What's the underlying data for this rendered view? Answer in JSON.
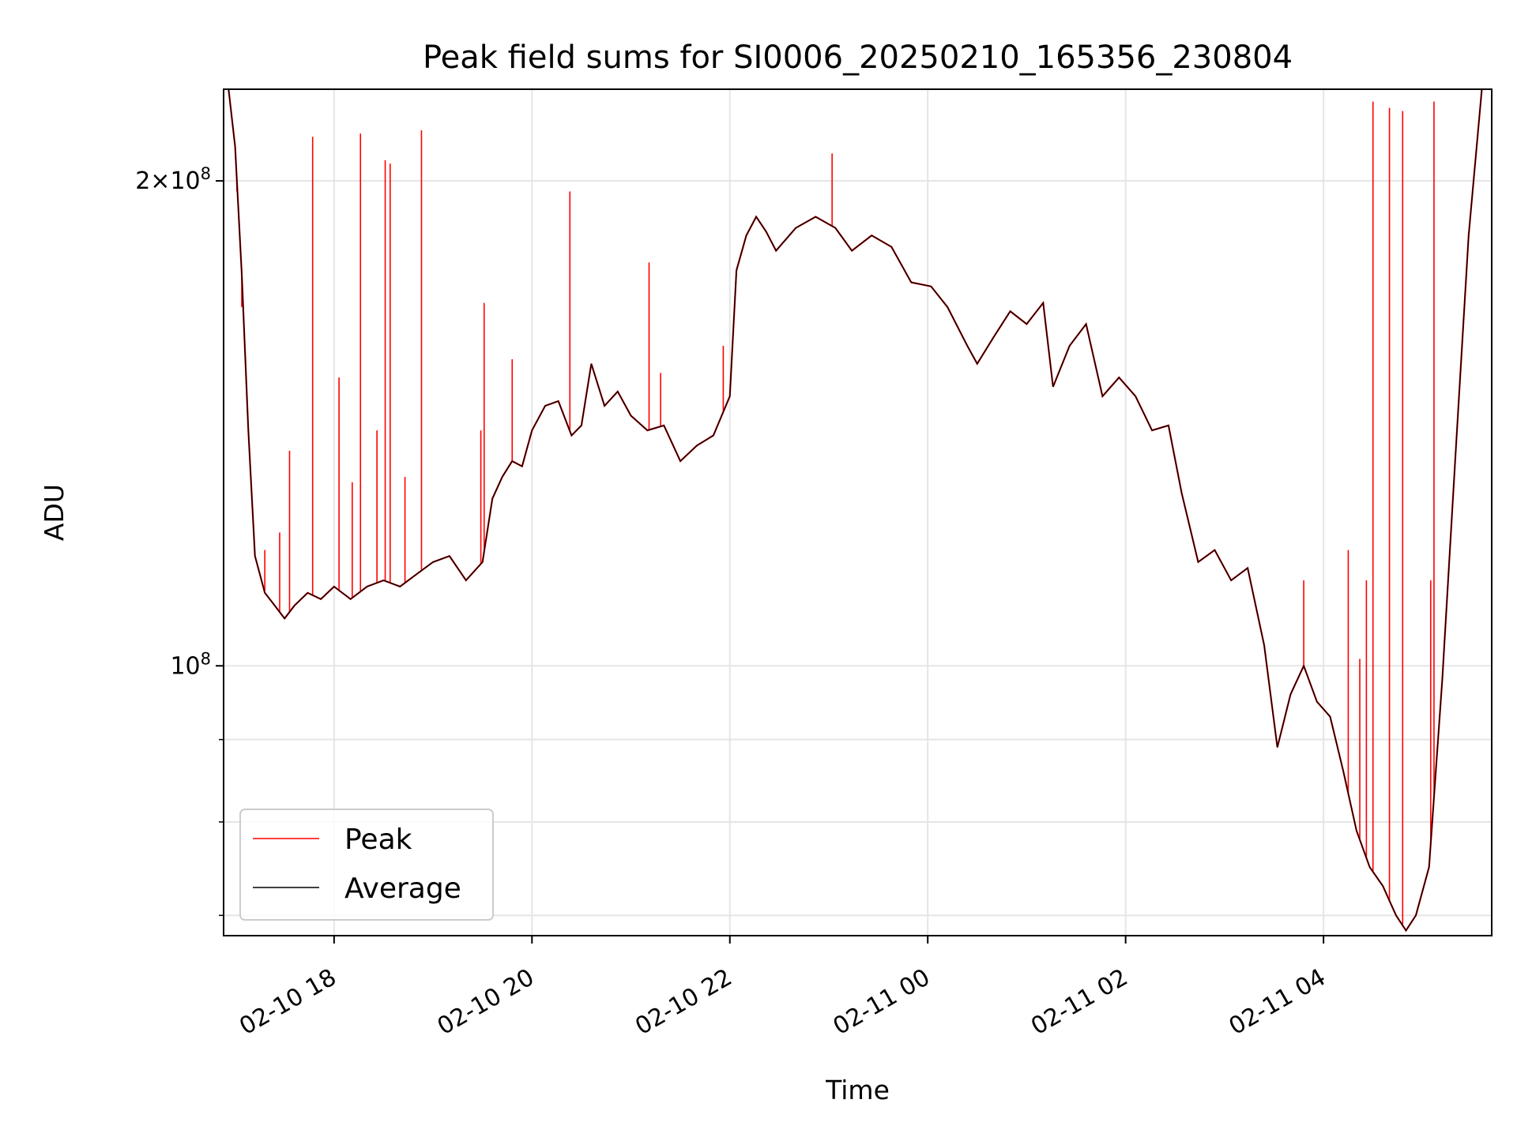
{
  "chart_data": {
    "type": "line",
    "title": "Peak field sums for SI0006_20250210_165356_230804",
    "xlabel": "Time",
    "ylabel": "ADU",
    "y_scale": "log",
    "ylim": [
      68000000,
      228000000
    ],
    "xlim": [
      "2025-02-10 16:53",
      "2025-02-11 05:42"
    ],
    "grid": true,
    "legend_position": "lower-left",
    "x_ticks": [
      "02-10 18",
      "02-10 20",
      "02-10 22",
      "02-11 00",
      "02-11 02",
      "02-11 04"
    ],
    "x_tick_times": [
      "2025-02-10 18:00",
      "2025-02-10 20:00",
      "2025-02-10 22:00",
      "2025-02-11 00:00",
      "2025-02-11 02:00",
      "2025-02-11 04:00"
    ],
    "y_ticks": [
      {
        "value": 100000000,
        "base": "10",
        "exp": "8",
        "mantissa": ""
      },
      {
        "value": 200000000,
        "base": "10",
        "exp": "8",
        "mantissa": "2×"
      }
    ],
    "colors": {
      "peak": "#ff0000",
      "average": "#000000",
      "grid": "#e5e5e5"
    },
    "series": [
      {
        "name": "Average",
        "color": "#000000",
        "points": [
          [
            "2025-02-10 16:56",
            228000000
          ],
          [
            "2025-02-10 17:00",
            210000000
          ],
          [
            "2025-02-10 17:04",
            175000000
          ],
          [
            "2025-02-10 17:08",
            140000000
          ],
          [
            "2025-02-10 17:12",
            117000000
          ],
          [
            "2025-02-10 17:18",
            111000000
          ],
          [
            "2025-02-10 17:24",
            109000000
          ],
          [
            "2025-02-10 17:30",
            107000000
          ],
          [
            "2025-02-10 17:36",
            109000000
          ],
          [
            "2025-02-10 17:44",
            111000000
          ],
          [
            "2025-02-10 17:52",
            110000000
          ],
          [
            "2025-02-10 18:00",
            112000000
          ],
          [
            "2025-02-10 18:10",
            110000000
          ],
          [
            "2025-02-10 18:20",
            112000000
          ],
          [
            "2025-02-10 18:30",
            113000000
          ],
          [
            "2025-02-10 18:40",
            112000000
          ],
          [
            "2025-02-10 18:50",
            114000000
          ],
          [
            "2025-02-10 19:00",
            116000000
          ],
          [
            "2025-02-10 19:10",
            117000000
          ],
          [
            "2025-02-10 19:20",
            113000000
          ],
          [
            "2025-02-10 19:30",
            116000000
          ],
          [
            "2025-02-10 19:36",
            127000000
          ],
          [
            "2025-02-10 19:42",
            131000000
          ],
          [
            "2025-02-10 19:48",
            134000000
          ],
          [
            "2025-02-10 19:54",
            133000000
          ],
          [
            "2025-02-10 20:00",
            140000000
          ],
          [
            "2025-02-10 20:08",
            145000000
          ],
          [
            "2025-02-10 20:16",
            146000000
          ],
          [
            "2025-02-10 20:24",
            139000000
          ],
          [
            "2025-02-10 20:30",
            141000000
          ],
          [
            "2025-02-10 20:36",
            154000000
          ],
          [
            "2025-02-10 20:44",
            145000000
          ],
          [
            "2025-02-10 20:52",
            148000000
          ],
          [
            "2025-02-10 21:00",
            143000000
          ],
          [
            "2025-02-10 21:10",
            140000000
          ],
          [
            "2025-02-10 21:20",
            141000000
          ],
          [
            "2025-02-10 21:30",
            134000000
          ],
          [
            "2025-02-10 21:40",
            137000000
          ],
          [
            "2025-02-10 21:50",
            139000000
          ],
          [
            "2025-02-10 22:00",
            147000000
          ],
          [
            "2025-02-10 22:04",
            176000000
          ],
          [
            "2025-02-10 22:10",
            185000000
          ],
          [
            "2025-02-10 22:16",
            190000000
          ],
          [
            "2025-02-10 22:22",
            186000000
          ],
          [
            "2025-02-10 22:28",
            181000000
          ],
          [
            "2025-02-10 22:40",
            187000000
          ],
          [
            "2025-02-10 22:52",
            190000000
          ],
          [
            "2025-02-10 23:04",
            187000000
          ],
          [
            "2025-02-10 23:14",
            181000000
          ],
          [
            "2025-02-10 23:26",
            185000000
          ],
          [
            "2025-02-10 23:38",
            182000000
          ],
          [
            "2025-02-10 23:50",
            173000000
          ],
          [
            "2025-02-11 00:02",
            172000000
          ],
          [
            "2025-02-11 00:12",
            167000000
          ],
          [
            "2025-02-11 00:24",
            158000000
          ],
          [
            "2025-02-11 00:30",
            154000000
          ],
          [
            "2025-02-11 00:40",
            160000000
          ],
          [
            "2025-02-11 00:50",
            166000000
          ],
          [
            "2025-02-11 01:00",
            163000000
          ],
          [
            "2025-02-11 01:10",
            168000000
          ],
          [
            "2025-02-11 01:16",
            149000000
          ],
          [
            "2025-02-11 01:26",
            158000000
          ],
          [
            "2025-02-11 01:36",
            163000000
          ],
          [
            "2025-02-11 01:46",
            147000000
          ],
          [
            "2025-02-11 01:56",
            151000000
          ],
          [
            "2025-02-11 02:06",
            147000000
          ],
          [
            "2025-02-11 02:16",
            140000000
          ],
          [
            "2025-02-11 02:26",
            141000000
          ],
          [
            "2025-02-11 02:34",
            128000000
          ],
          [
            "2025-02-11 02:44",
            116000000
          ],
          [
            "2025-02-11 02:54",
            118000000
          ],
          [
            "2025-02-11 03:04",
            113000000
          ],
          [
            "2025-02-11 03:14",
            115000000
          ],
          [
            "2025-02-11 03:24",
            103000000
          ],
          [
            "2025-02-11 03:32",
            89000000
          ],
          [
            "2025-02-11 03:40",
            96000000
          ],
          [
            "2025-02-11 03:48",
            100000000
          ],
          [
            "2025-02-11 03:56",
            95000000
          ],
          [
            "2025-02-11 04:04",
            93000000
          ],
          [
            "2025-02-11 04:12",
            86000000
          ],
          [
            "2025-02-11 04:20",
            79000000
          ],
          [
            "2025-02-11 04:28",
            75000000
          ],
          [
            "2025-02-11 04:36",
            73000000
          ],
          [
            "2025-02-11 04:44",
            70000000
          ],
          [
            "2025-02-11 04:50",
            68500000
          ],
          [
            "2025-02-11 04:56",
            70000000
          ],
          [
            "2025-02-11 05:04",
            75000000
          ],
          [
            "2025-02-11 05:12",
            98000000
          ],
          [
            "2025-02-11 05:20",
            135000000
          ],
          [
            "2025-02-11 05:28",
            185000000
          ],
          [
            "2025-02-11 05:36",
            228000000
          ]
        ]
      },
      {
        "name": "Peak",
        "color": "#ff0000",
        "spikes": [
          [
            "2025-02-10 17:01",
            197000000
          ],
          [
            "2025-02-10 17:04",
            167000000
          ],
          [
            "2025-02-10 17:18",
            118000000
          ],
          [
            "2025-02-10 17:27",
            121000000
          ],
          [
            "2025-02-10 17:33",
            136000000
          ],
          [
            "2025-02-10 17:47",
            213000000
          ],
          [
            "2025-02-10 18:03",
            151000000
          ],
          [
            "2025-02-10 18:11",
            130000000
          ],
          [
            "2025-02-10 18:16",
            214000000
          ],
          [
            "2025-02-10 18:26",
            140000000
          ],
          [
            "2025-02-10 18:31",
            206000000
          ],
          [
            "2025-02-10 18:34",
            205000000
          ],
          [
            "2025-02-10 18:43",
            131000000
          ],
          [
            "2025-02-10 18:53",
            215000000
          ],
          [
            "2025-02-10 19:29",
            140000000
          ],
          [
            "2025-02-10 19:31",
            168000000
          ],
          [
            "2025-02-10 19:48",
            155000000
          ],
          [
            "2025-02-10 20:23",
            197000000
          ],
          [
            "2025-02-10 21:11",
            178000000
          ],
          [
            "2025-02-10 21:18",
            152000000
          ],
          [
            "2025-02-10 21:56",
            158000000
          ],
          [
            "2025-02-10 23:02",
            208000000
          ],
          [
            "2025-02-11 03:48",
            113000000
          ],
          [
            "2025-02-11 04:15",
            118000000
          ],
          [
            "2025-02-11 04:22",
            101000000
          ],
          [
            "2025-02-11 04:26",
            113000000
          ],
          [
            "2025-02-11 04:30",
            224000000
          ],
          [
            "2025-02-11 04:40",
            222000000
          ],
          [
            "2025-02-11 04:48",
            221000000
          ],
          [
            "2025-02-11 05:05",
            113000000
          ],
          [
            "2025-02-11 05:07",
            224000000
          ]
        ]
      }
    ]
  }
}
